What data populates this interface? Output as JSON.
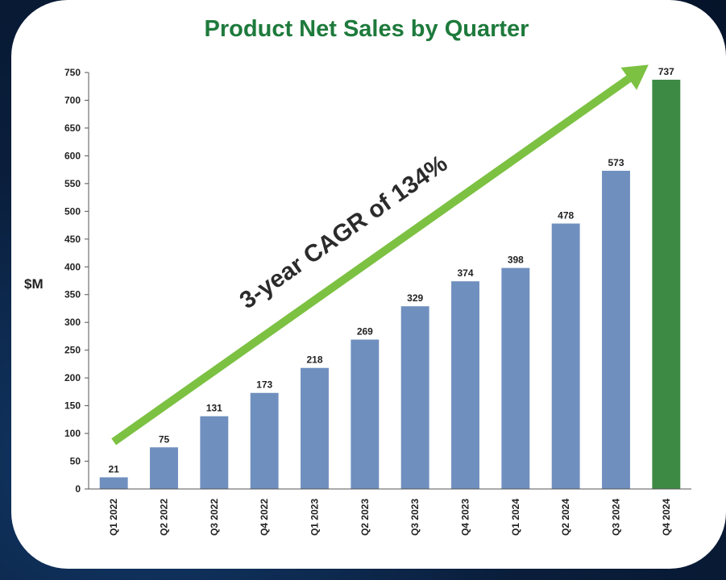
{
  "chart_data": {
    "type": "bar",
    "title": "Product Net Sales by Quarter",
    "ylabel": "$M",
    "xlabel": "",
    "ylim": [
      0,
      750
    ],
    "yticks": [
      0,
      50,
      100,
      150,
      200,
      250,
      300,
      350,
      400,
      450,
      500,
      550,
      600,
      650,
      700,
      750
    ],
    "categories": [
      "Q1 2022",
      "Q2 2022",
      "Q3 2022",
      "Q4 2022",
      "Q1 2023",
      "Q2 2023",
      "Q3 2023",
      "Q4 2023",
      "Q1 2024",
      "Q2 2024",
      "Q3 2024",
      "Q4 2024"
    ],
    "values": [
      21,
      75,
      131,
      173,
      218,
      269,
      329,
      374,
      398,
      478,
      573,
      737
    ],
    "data_labels": [
      "21",
      "75",
      "131",
      "173",
      "218",
      "269",
      "329",
      "374",
      "398",
      "478",
      "573",
      "737"
    ],
    "bar_colors": [
      "#6f8fbf",
      "#6f8fbf",
      "#6f8fbf",
      "#6f8fbf",
      "#6f8fbf",
      "#6f8fbf",
      "#6f8fbf",
      "#6f8fbf",
      "#6f8fbf",
      "#6f8fbf",
      "#6f8fbf",
      "#3d8a45"
    ],
    "grid": false,
    "legend": "none",
    "annotation": {
      "text": "3-year CAGR of 134%",
      "arrow_color": "#7cc142",
      "arrow_from": {
        "category": "Q1 2022",
        "value": 85
      },
      "arrow_to": {
        "category": "Q4 2024",
        "value": 790
      }
    }
  },
  "colors": {
    "title": "#1e7a3c",
    "background": "#0a1f3d",
    "card": "#ffffff"
  }
}
